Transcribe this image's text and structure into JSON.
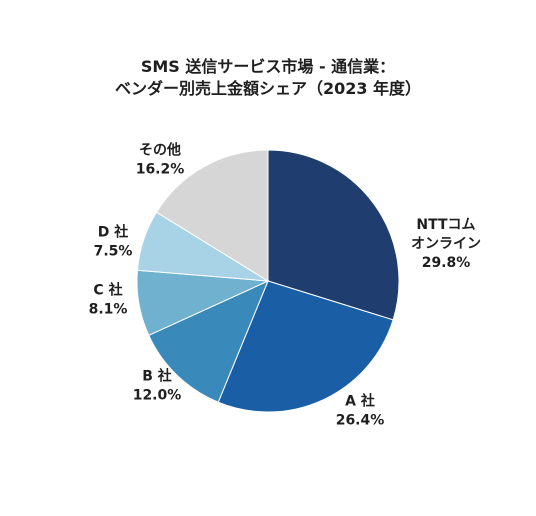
{
  "chart_data": {
    "type": "pie",
    "title_lines": [
      "SMS 送信サービス市場 - 通信業：",
      "ベンダー別売上金額シェア（2023 年度）"
    ],
    "start": "12 o'clock",
    "direction": "clockwise",
    "slices": [
      {
        "label_lines": [
          "NTTコム",
          "オンライン"
        ],
        "value": 29.8,
        "value_text": "29.8%",
        "color": "#1f3d6f"
      },
      {
        "label_lines": [
          "A 社"
        ],
        "value": 26.4,
        "value_text": "26.4%",
        "color": "#1a5fa6"
      },
      {
        "label_lines": [
          "B 社"
        ],
        "value": 12.0,
        "value_text": "12.0%",
        "color": "#3a89bb"
      },
      {
        "label_lines": [
          "C 社"
        ],
        "value": 8.1,
        "value_text": "8.1%",
        "color": "#6fb1ce"
      },
      {
        "label_lines": [
          "D 社"
        ],
        "value": 7.5,
        "value_text": "7.5%",
        "color": "#a8d2e6"
      },
      {
        "label_lines": [
          "その他"
        ],
        "value": 16.2,
        "value_text": "16.2%",
        "color": "#d6d6d6"
      }
    ]
  }
}
